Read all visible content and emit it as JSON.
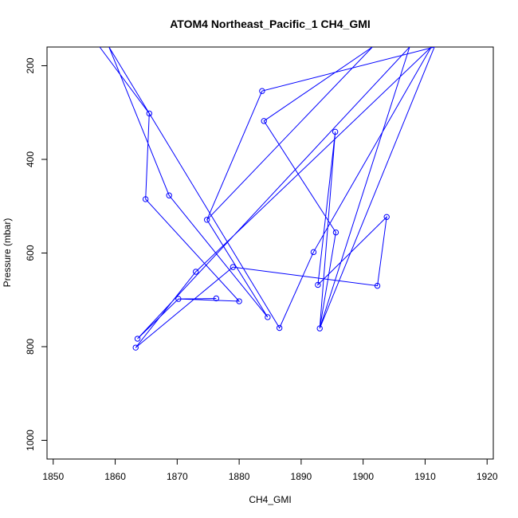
{
  "chart_data": {
    "type": "line",
    "title": "ATOM4 Northeast_Pacific_1 CH4_GMI",
    "xlabel": "CH4_GMI",
    "ylabel": "Pressure (mbar)",
    "xlim": [
      1849,
      1921
    ],
    "ylim": [
      1040,
      160
    ],
    "y_reversed": true,
    "x_ticks": [
      1850,
      1860,
      1870,
      1880,
      1890,
      1900,
      1910,
      1920
    ],
    "y_ticks": [
      200,
      400,
      600,
      800,
      1000
    ],
    "grid": false,
    "legend": "none",
    "series_color": "#0000ff",
    "marker": "open-circle",
    "series": [
      {
        "points": [
          [
            1857.5,
            160
          ],
          [
            1865.5,
            302
          ],
          [
            1864.9,
            485
          ],
          [
            1880.0,
            703
          ],
          [
            1870.2,
            698
          ],
          [
            1876.3,
            697
          ],
          [
            1870.2,
            698
          ],
          [
            1863.6,
            783
          ],
          [
            1907.5,
            160
          ],
          [
            1893.0,
            761
          ],
          [
            1895.6,
            556
          ],
          [
            1884.0,
            318
          ],
          [
            1901.5,
            160
          ],
          [
            1874.8,
            529
          ],
          [
            1884.6,
            737
          ],
          [
            1868.7,
            477
          ],
          [
            1859.0,
            160
          ],
          [
            1886.5,
            760
          ],
          [
            1892.0,
            598
          ],
          [
            1911.0,
            160
          ],
          [
            1873.0,
            640
          ],
          [
            1863.3,
            802
          ],
          [
            1879.0,
            630
          ],
          [
            1902.3,
            670
          ],
          [
            1903.8,
            523
          ],
          [
            1892.7,
            668
          ],
          [
            1895.5,
            341
          ],
          [
            1893.0,
            761
          ],
          [
            1911.5,
            160
          ],
          [
            1883.7,
            254
          ],
          [
            1874.8,
            529
          ]
        ],
        "markers": [
          [
            1865.5,
            302
          ],
          [
            1864.9,
            485
          ],
          [
            1880.0,
            703
          ],
          [
            1870.2,
            698
          ],
          [
            1876.3,
            697
          ],
          [
            1863.6,
            783
          ],
          [
            1893.0,
            761
          ],
          [
            1895.6,
            556
          ],
          [
            1884.0,
            318
          ],
          [
            1874.8,
            529
          ],
          [
            1884.6,
            737
          ],
          [
            1868.7,
            477
          ],
          [
            1886.5,
            760
          ],
          [
            1892.0,
            598
          ],
          [
            1873.0,
            640
          ],
          [
            1863.3,
            802
          ],
          [
            1879.0,
            630
          ],
          [
            1902.3,
            670
          ],
          [
            1903.8,
            523
          ],
          [
            1892.7,
            668
          ],
          [
            1895.5,
            341
          ],
          [
            1883.7,
            254
          ]
        ]
      }
    ]
  }
}
